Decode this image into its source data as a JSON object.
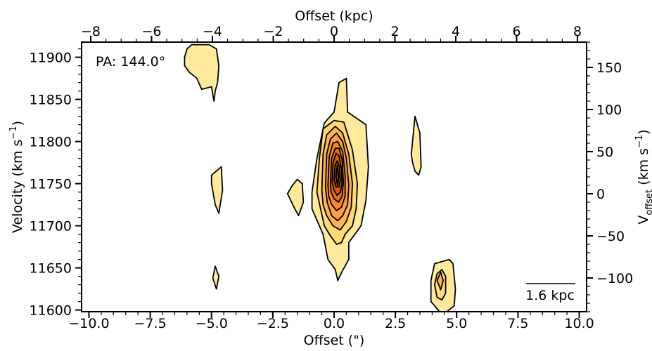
{
  "chart_data": {
    "type": "contour",
    "annotation": "PA: 144.0°",
    "scalebar_label": "1.6 kpc",
    "x_bottom": {
      "label": "Offset (\")",
      "lim": [
        -10.3,
        10.3
      ],
      "ticks": [
        -10.0,
        -7.5,
        -5.0,
        -2.5,
        0.0,
        2.5,
        5.0,
        7.5,
        10.0
      ],
      "tick_labels": [
        "−10.0",
        "−7.5",
        "−5.0",
        "−2.5",
        "0.0",
        "2.5",
        "5.0",
        "7.5",
        "10.0"
      ]
    },
    "x_top": {
      "label": "Offset (kpc)",
      "lim": [
        -8.3,
        8.3
      ],
      "ticks": [
        -8,
        -6,
        -4,
        -2,
        0,
        2,
        4,
        6,
        8
      ],
      "tick_labels": [
        "−8",
        "−6",
        "−4",
        "−2",
        "0",
        "2",
        "4",
        "6",
        "8"
      ]
    },
    "y_left": {
      "label": "Velocity (km s⁻¹)",
      "lim": [
        11598,
        11918
      ],
      "ticks": [
        11600,
        11650,
        11700,
        11750,
        11800,
        11850,
        11900
      ],
      "tick_labels": [
        "11600",
        "11650",
        "11700",
        "11750",
        "11800",
        "11850",
        "11900"
      ]
    },
    "y_right": {
      "label": "V_offset (km s⁻¹)",
      "lim": [
        -140,
        180
      ],
      "ticks": [
        -100,
        -50,
        0,
        50,
        100,
        150
      ],
      "tick_labels": [
        "−100",
        "−50",
        "0",
        "50",
        "100",
        "150"
      ]
    },
    "colors": {
      "levels": [
        "#fee99d",
        "#fed976",
        "#fdb45a",
        "#fd9f45",
        "#f7852e",
        "#e8711e",
        "#d65a14",
        "#bf4a0e",
        "#9c3a08"
      ],
      "line": "#000000"
    },
    "contour_sets": [
      {
        "levels": [
          [
            [
              -0.9,
              11740
            ],
            [
              -0.7,
              11780
            ],
            [
              -0.4,
              11822
            ],
            [
              0.0,
              11835
            ],
            [
              0.2,
              11870
            ],
            [
              0.5,
              11875
            ],
            [
              0.55,
              11835
            ],
            [
              1.3,
              11820
            ],
            [
              1.4,
              11770
            ],
            [
              1.3,
              11730
            ],
            [
              1.1,
              11700
            ],
            [
              0.6,
              11680
            ],
            [
              0.6,
              11660
            ],
            [
              0.35,
              11647
            ],
            [
              0.15,
              11635
            ],
            [
              0.05,
              11648
            ],
            [
              -0.25,
              11660
            ],
            [
              -0.45,
              11690
            ],
            [
              -0.6,
              11700
            ],
            [
              -0.9,
              11720
            ]
          ],
          [
            [
              -0.7,
              11740
            ],
            [
              -0.6,
              11780
            ],
            [
              -0.45,
              11815
            ],
            [
              0.0,
              11825
            ],
            [
              0.4,
              11823
            ],
            [
              0.75,
              11790
            ],
            [
              0.95,
              11750
            ],
            [
              0.9,
              11720
            ],
            [
              0.75,
              11700
            ],
            [
              0.45,
              11690
            ],
            [
              0.3,
              11680
            ],
            [
              0.1,
              11678
            ],
            [
              -0.15,
              11688
            ],
            [
              -0.4,
              11700
            ],
            [
              -0.55,
              11720
            ]
          ],
          [
            [
              -0.5,
              11742
            ],
            [
              -0.45,
              11785
            ],
            [
              -0.3,
              11808
            ],
            [
              0.05,
              11818
            ],
            [
              0.35,
              11810
            ],
            [
              0.6,
              11785
            ],
            [
              0.75,
              11750
            ],
            [
              0.7,
              11722
            ],
            [
              0.5,
              11705
            ],
            [
              0.25,
              11695
            ],
            [
              -0.05,
              11700
            ],
            [
              -0.3,
              11712
            ],
            [
              -0.45,
              11725
            ]
          ],
          [
            [
              -0.35,
              11745
            ],
            [
              -0.3,
              11785
            ],
            [
              -0.15,
              11803
            ],
            [
              0.1,
              11810
            ],
            [
              0.35,
              11800
            ],
            [
              0.5,
              11780
            ],
            [
              0.6,
              11748
            ],
            [
              0.55,
              11725
            ],
            [
              0.35,
              11712
            ],
            [
              0.15,
              11706
            ],
            [
              -0.1,
              11712
            ],
            [
              -0.28,
              11728
            ]
          ],
          [
            [
              -0.25,
              11748
            ],
            [
              -0.2,
              11782
            ],
            [
              -0.05,
              11798
            ],
            [
              0.15,
              11800
            ],
            [
              0.35,
              11788
            ],
            [
              0.45,
              11760
            ],
            [
              0.45,
              11735
            ],
            [
              0.3,
              11722
            ],
            [
              0.1,
              11718
            ],
            [
              -0.1,
              11725
            ],
            [
              -0.22,
              11735
            ]
          ],
          [
            [
              -0.15,
              11750
            ],
            [
              -0.1,
              11780
            ],
            [
              0.05,
              11792
            ],
            [
              0.2,
              11792
            ],
            [
              0.33,
              11778
            ],
            [
              0.38,
              11752
            ],
            [
              0.33,
              11735
            ],
            [
              0.18,
              11728
            ],
            [
              0.0,
              11732
            ],
            [
              -0.12,
              11740
            ]
          ],
          [
            [
              -0.08,
              11752
            ],
            [
              -0.04,
              11775
            ],
            [
              0.08,
              11786
            ],
            [
              0.2,
              11783
            ],
            [
              0.3,
              11768
            ],
            [
              0.32,
              11750
            ],
            [
              0.26,
              11740
            ],
            [
              0.12,
              11736
            ],
            [
              0.0,
              11742
            ]
          ],
          [
            [
              0.0,
              11755
            ],
            [
              0.04,
              11772
            ],
            [
              0.13,
              11777
            ],
            [
              0.22,
              11770
            ],
            [
              0.25,
              11755
            ],
            [
              0.2,
              11746
            ],
            [
              0.08,
              11746
            ]
          ],
          [
            [
              0.08,
              11758
            ],
            [
              0.13,
              11772
            ],
            [
              0.19,
              11758
            ],
            [
              0.14,
              11748
            ]
          ]
        ]
      },
      {
        "levels": [
          [
            [
              3.95,
              11635
            ],
            [
              4.1,
              11655
            ],
            [
              4.7,
              11660
            ],
            [
              4.85,
              11655
            ],
            [
              4.95,
              11625
            ],
            [
              4.9,
              11605
            ],
            [
              4.6,
              11598
            ],
            [
              4.3,
              11598
            ],
            [
              3.95,
              11610
            ]
          ],
          [
            [
              4.1,
              11630
            ],
            [
              4.2,
              11643
            ],
            [
              4.4,
              11648
            ],
            [
              4.55,
              11640
            ],
            [
              4.55,
              11620
            ],
            [
              4.4,
              11612
            ],
            [
              4.2,
              11615
            ]
          ],
          [
            [
              4.2,
              11635
            ],
            [
              4.35,
              11645
            ],
            [
              4.45,
              11635
            ],
            [
              4.35,
              11624
            ]
          ]
        ]
      },
      {
        "levels": [
          [
            [
              -6.1,
              11900
            ],
            [
              -6.0,
              11910
            ],
            [
              -5.8,
              11915
            ],
            [
              -5.1,
              11915
            ],
            [
              -4.8,
              11910
            ],
            [
              -4.7,
              11890
            ],
            [
              -4.75,
              11870
            ],
            [
              -4.85,
              11860
            ],
            [
              -4.9,
              11848
            ],
            [
              -5.0,
              11865
            ],
            [
              -5.4,
              11862
            ],
            [
              -5.6,
              11875
            ],
            [
              -5.9,
              11882
            ],
            [
              -6.1,
              11890
            ]
          ]
        ]
      },
      {
        "levels": [
          [
            [
              -5.0,
              11760
            ],
            [
              -4.6,
              11770
            ],
            [
              -4.55,
              11742
            ],
            [
              -4.7,
              11715
            ],
            [
              -4.85,
              11725
            ],
            [
              -5.0,
              11750
            ]
          ]
        ]
      },
      {
        "levels": [
          [
            [
              -1.9,
              11738
            ],
            [
              -1.7,
              11748
            ],
            [
              -1.5,
              11755
            ],
            [
              -1.3,
              11750
            ],
            [
              -1.25,
              11728
            ],
            [
              -1.45,
              11712
            ],
            [
              -1.6,
              11720
            ]
          ]
        ]
      },
      {
        "levels": [
          [
            [
              3.15,
              11785
            ],
            [
              3.3,
              11830
            ],
            [
              3.5,
              11810
            ],
            [
              3.55,
              11770
            ],
            [
              3.45,
              11760
            ],
            [
              3.3,
              11765
            ],
            [
              3.2,
              11775
            ]
          ]
        ]
      },
      {
        "levels": [
          [
            [
              -4.95,
              11638
            ],
            [
              -4.85,
              11652
            ],
            [
              -4.7,
              11640
            ],
            [
              -4.8,
              11625
            ]
          ]
        ]
      }
    ]
  }
}
